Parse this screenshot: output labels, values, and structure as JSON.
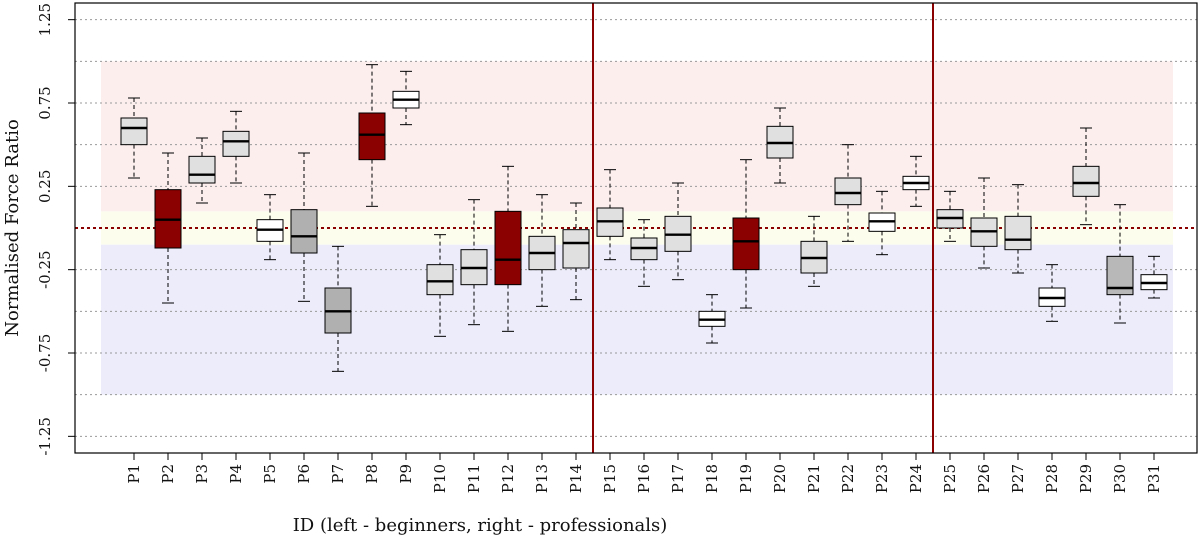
{
  "chart_data": {
    "type": "boxplot",
    "title": "",
    "xlabel": "ID (left - beginners, right - professionals)",
    "ylabel": "Normalised Force Ratio",
    "ylim": [
      -1.35,
      1.35
    ],
    "yticks": [
      -1.25,
      -0.75,
      -0.25,
      0.25,
      0.75,
      1.25
    ],
    "ytick_labels": [
      "-1.25",
      "-0.75",
      "-0.25",
      "0.25",
      "0.75",
      "1.25"
    ],
    "grid": true,
    "reference_line": 0,
    "bands": [
      {
        "name": "upper-band",
        "from": 0.1,
        "to": 1.0,
        "color": "#fdeeee"
      },
      {
        "name": "neutral-band",
        "from": -0.1,
        "to": 0.1,
        "color": "#fdfdee"
      },
      {
        "name": "lower-band",
        "from": -1.0,
        "to": -0.1,
        "color": "#ececfb"
      }
    ],
    "group_separators": [
      "P14|P15",
      "P24|P25"
    ],
    "colors": {
      "white": "#ffffff",
      "light": "#e0e0e0",
      "mid": "#b8b8b8",
      "dark": "#b0b0b0",
      "red": "#8b0000",
      "separator": "#8b0000",
      "refline": "#8b0000"
    },
    "boxes": [
      {
        "id": "P1",
        "min": 0.3,
        "q1": 0.5,
        "median": 0.6,
        "q3": 0.66,
        "max": 0.78,
        "fill": "light"
      },
      {
        "id": "P2",
        "min": -0.45,
        "q1": -0.12,
        "median": 0.05,
        "q3": 0.23,
        "max": 0.45,
        "fill": "red"
      },
      {
        "id": "P3",
        "min": 0.15,
        "q1": 0.27,
        "median": 0.32,
        "q3": 0.43,
        "max": 0.54,
        "fill": "light"
      },
      {
        "id": "P4",
        "min": 0.27,
        "q1": 0.43,
        "median": 0.52,
        "q3": 0.58,
        "max": 0.7,
        "fill": "light"
      },
      {
        "id": "P5",
        "min": -0.19,
        "q1": -0.08,
        "median": -0.01,
        "q3": 0.05,
        "max": 0.2,
        "fill": "white"
      },
      {
        "id": "P6",
        "min": -0.44,
        "q1": -0.15,
        "median": -0.05,
        "q3": 0.11,
        "max": 0.45,
        "fill": "dark"
      },
      {
        "id": "P7",
        "min": -0.86,
        "q1": -0.63,
        "median": -0.5,
        "q3": -0.36,
        "max": -0.11,
        "fill": "dark"
      },
      {
        "id": "P8",
        "min": 0.13,
        "q1": 0.41,
        "median": 0.56,
        "q3": 0.69,
        "max": 0.98,
        "fill": "red"
      },
      {
        "id": "P9",
        "min": 0.62,
        "q1": 0.72,
        "median": 0.77,
        "q3": 0.82,
        "max": 0.94,
        "fill": "white"
      },
      {
        "id": "P10",
        "min": -0.65,
        "q1": -0.4,
        "median": -0.32,
        "q3": -0.22,
        "max": -0.04,
        "fill": "light"
      },
      {
        "id": "P11",
        "min": -0.58,
        "q1": -0.34,
        "median": -0.24,
        "q3": -0.13,
        "max": 0.17,
        "fill": "light"
      },
      {
        "id": "P12",
        "min": -0.62,
        "q1": -0.34,
        "median": -0.19,
        "q3": 0.1,
        "max": 0.37,
        "fill": "red"
      },
      {
        "id": "P13",
        "min": -0.47,
        "q1": -0.25,
        "median": -0.15,
        "q3": -0.05,
        "max": 0.2,
        "fill": "light"
      },
      {
        "id": "P14",
        "min": -0.43,
        "q1": -0.24,
        "median": -0.09,
        "q3": -0.01,
        "max": 0.15,
        "fill": "light"
      },
      {
        "id": "P15",
        "min": -0.19,
        "q1": -0.05,
        "median": 0.04,
        "q3": 0.12,
        "max": 0.35,
        "fill": "light"
      },
      {
        "id": "P16",
        "min": -0.35,
        "q1": -0.19,
        "median": -0.12,
        "q3": -0.06,
        "max": 0.05,
        "fill": "light"
      },
      {
        "id": "P17",
        "min": -0.31,
        "q1": -0.14,
        "median": -0.04,
        "q3": 0.07,
        "max": 0.27,
        "fill": "light"
      },
      {
        "id": "P18",
        "min": -0.69,
        "q1": -0.59,
        "median": -0.55,
        "q3": -0.5,
        "max": -0.4,
        "fill": "white"
      },
      {
        "id": "P19",
        "min": -0.48,
        "q1": -0.25,
        "median": -0.08,
        "q3": 0.06,
        "max": 0.41,
        "fill": "red"
      },
      {
        "id": "P20",
        "min": 0.27,
        "q1": 0.42,
        "median": 0.51,
        "q3": 0.61,
        "max": 0.72,
        "fill": "light"
      },
      {
        "id": "P21",
        "min": -0.35,
        "q1": -0.27,
        "median": -0.18,
        "q3": -0.08,
        "max": 0.07,
        "fill": "light"
      },
      {
        "id": "P22",
        "min": -0.08,
        "q1": 0.14,
        "median": 0.21,
        "q3": 0.3,
        "max": 0.5,
        "fill": "light"
      },
      {
        "id": "P23",
        "min": -0.16,
        "q1": -0.02,
        "median": 0.04,
        "q3": 0.09,
        "max": 0.22,
        "fill": "white"
      },
      {
        "id": "P24",
        "min": 0.13,
        "q1": 0.23,
        "median": 0.27,
        "q3": 0.31,
        "max": 0.43,
        "fill": "white"
      },
      {
        "id": "P25",
        "min": -0.08,
        "q1": 0.0,
        "median": 0.06,
        "q3": 0.11,
        "max": 0.22,
        "fill": "light"
      },
      {
        "id": "P26",
        "min": -0.24,
        "q1": -0.11,
        "median": -0.02,
        "q3": 0.06,
        "max": 0.3,
        "fill": "light"
      },
      {
        "id": "P27",
        "min": -0.27,
        "q1": -0.13,
        "median": -0.07,
        "q3": 0.07,
        "max": 0.26,
        "fill": "light"
      },
      {
        "id": "P28",
        "min": -0.56,
        "q1": -0.47,
        "median": -0.42,
        "q3": -0.36,
        "max": -0.22,
        "fill": "white"
      },
      {
        "id": "P29",
        "min": 0.02,
        "q1": 0.19,
        "median": 0.27,
        "q3": 0.37,
        "max": 0.6,
        "fill": "light"
      },
      {
        "id": "P30",
        "min": -0.57,
        "q1": -0.4,
        "median": -0.36,
        "q3": -0.17,
        "max": 0.14,
        "fill": "mid"
      },
      {
        "id": "P31",
        "min": -0.42,
        "q1": -0.37,
        "median": -0.33,
        "q3": -0.28,
        "max": -0.17,
        "fill": "white"
      }
    ]
  }
}
